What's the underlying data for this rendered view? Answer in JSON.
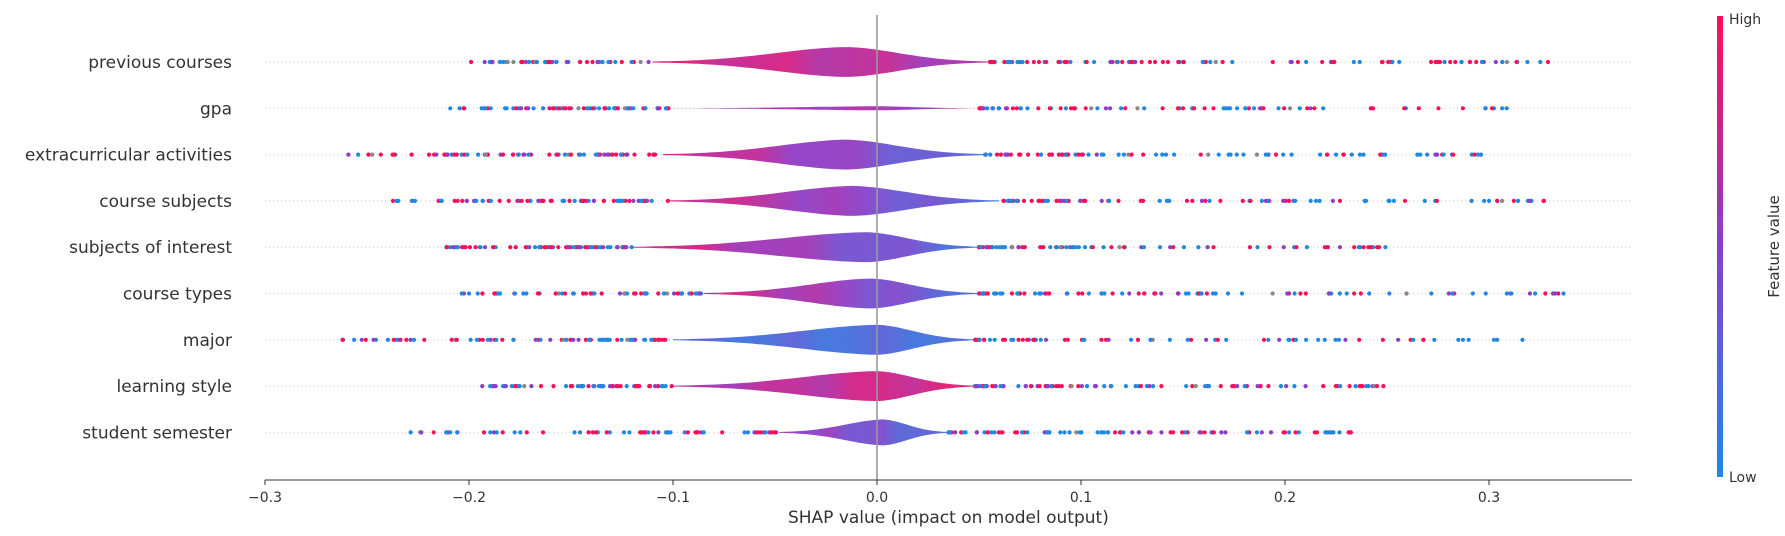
{
  "chart_data": {
    "type": "violin",
    "title": "",
    "xlabel": "SHAP value (impact on model output)",
    "ylabel": "",
    "xlim": [
      -0.3,
      0.37
    ],
    "xticks": [
      -0.3,
      -0.2,
      -0.1,
      0.0,
      0.1,
      0.2,
      0.3
    ],
    "xtick_labels": [
      "−0.3",
      "−0.2",
      "−0.1",
      "0.0",
      "0.1",
      "0.2",
      "0.3"
    ],
    "zero_line": 0.0,
    "grid": false,
    "colors": {
      "low": "#1E88E5",
      "mid": "#8B3FC9",
      "high": "#FF0D57",
      "nan": "#888888",
      "zero_line": "#999999"
    },
    "colorbar": {
      "title": "Feature value",
      "high_label": "High",
      "low_label": "Low",
      "placement": "right"
    },
    "features": [
      {
        "name": "previous courses",
        "violin": {
          "min": -0.11,
          "max": 0.055,
          "mode": -0.015,
          "color_low_side": "high",
          "color_high_side": "mixed"
        },
        "extent": [
          -0.2,
          0.33
        ]
      },
      {
        "name": "gpa",
        "violin": {
          "min": -0.1,
          "max": 0.05,
          "mode": 0.0,
          "color_low_side": "mixed",
          "color_high_side": "mixed"
        },
        "extent": [
          -0.215,
          0.315
        ]
      },
      {
        "name": "extracurricular activities",
        "violin": {
          "min": -0.105,
          "max": 0.053,
          "mode": -0.015,
          "color_low_side": "high",
          "color_high_side": "low"
        },
        "extent": [
          -0.263,
          0.308
        ]
      },
      {
        "name": "course subjects",
        "violin": {
          "min": -0.102,
          "max": 0.06,
          "mode": -0.012,
          "color_low_side": "high",
          "color_high_side": "low"
        },
        "extent": [
          -0.238,
          0.33
        ]
      },
      {
        "name": "subjects of interest",
        "violin": {
          "min": -0.12,
          "max": 0.05,
          "mode": -0.005,
          "color_low_side": "high",
          "color_high_side": "low"
        },
        "extent": [
          -0.216,
          0.252
        ]
      },
      {
        "name": "course types",
        "violin": {
          "min": -0.085,
          "max": 0.05,
          "mode": -0.003,
          "color_low_side": "high",
          "color_high_side": "low"
        },
        "extent": [
          -0.204,
          0.338
        ]
      },
      {
        "name": "major",
        "violin": {
          "min": -0.1,
          "max": 0.048,
          "mode": 0.0,
          "color_low_side": "low",
          "color_high_side": "low"
        },
        "extent": [
          -0.27,
          0.32
        ]
      },
      {
        "name": "learning style",
        "violin": {
          "min": -0.1,
          "max": 0.048,
          "mode": 0.0,
          "color_low_side": "mixed",
          "color_high_side": "high"
        },
        "extent": [
          -0.202,
          0.25
        ]
      },
      {
        "name": "student semester",
        "violin": {
          "min": -0.048,
          "max": 0.035,
          "mode": 0.003,
          "color_low_side": "mixed",
          "color_high_side": "low"
        },
        "extent": [
          -0.232,
          0.238
        ]
      }
    ]
  }
}
